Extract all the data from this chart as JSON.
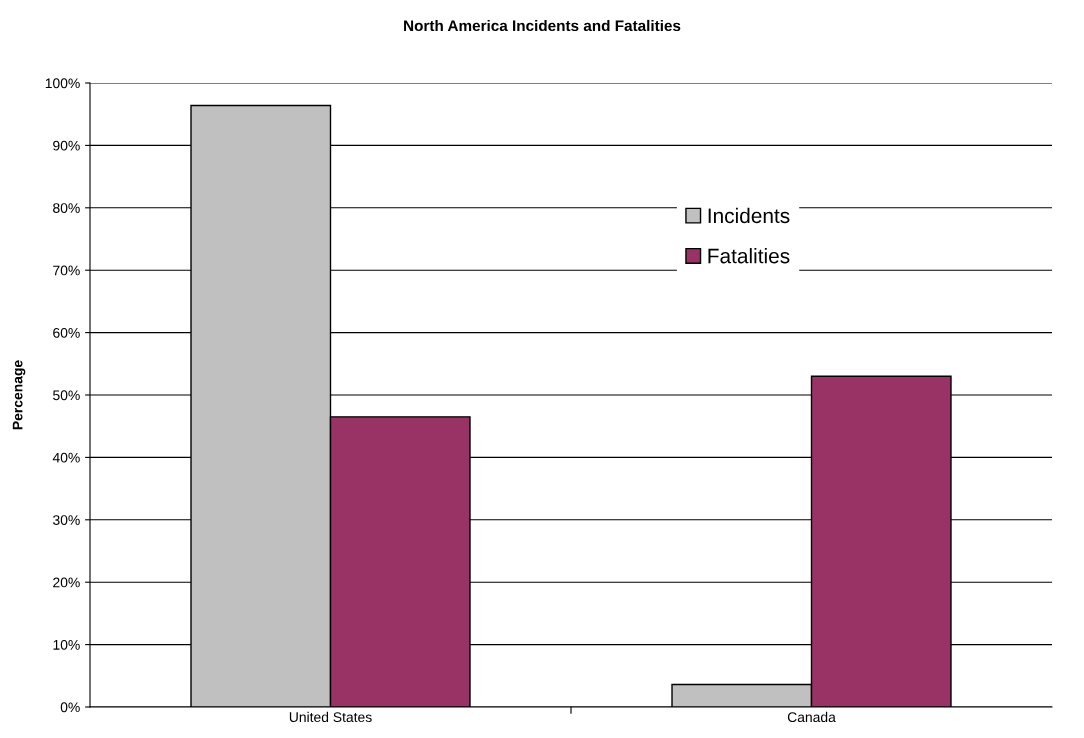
{
  "chart_data": {
    "type": "bar",
    "title": "North America Incidents and Fatalities",
    "ylabel": "Percenage",
    "categories": [
      "United States",
      "Canada"
    ],
    "series": [
      {
        "name": "Incidents",
        "color": "#c0c0c0",
        "values": [
          96.4,
          3.6
        ]
      },
      {
        "name": "Fatalities",
        "color": "#993366",
        "values": [
          46.5,
          53.0
        ]
      }
    ],
    "ylim": [
      0,
      100
    ],
    "yticks": [
      {
        "value": 0,
        "label": "0%"
      },
      {
        "value": 10,
        "label": "10%"
      },
      {
        "value": 20,
        "label": "20%"
      },
      {
        "value": 30,
        "label": "30%"
      },
      {
        "value": 40,
        "label": "40%"
      },
      {
        "value": 50,
        "label": "50%"
      },
      {
        "value": 60,
        "label": "60%"
      },
      {
        "value": 70,
        "label": "70%"
      },
      {
        "value": 80,
        "label": "80%"
      },
      {
        "value": 90,
        "label": "90%"
      },
      {
        "value": 100,
        "label": "100%"
      }
    ],
    "grid": "y",
    "legend": "top right"
  }
}
